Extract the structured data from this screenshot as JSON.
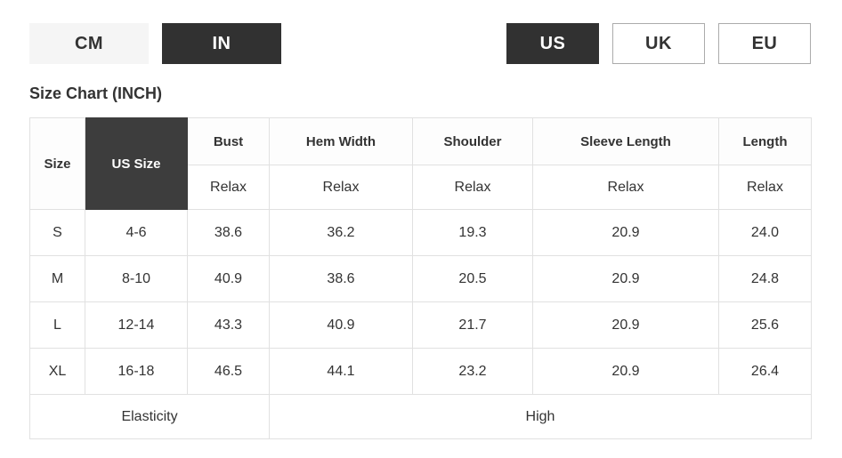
{
  "unit_toggle": {
    "options": [
      {
        "label": "CM",
        "selected": false
      },
      {
        "label": "IN",
        "selected": true
      }
    ]
  },
  "region_toggle": {
    "options": [
      {
        "label": "US",
        "selected": true
      },
      {
        "label": "UK",
        "selected": false
      },
      {
        "label": "EU",
        "selected": false
      }
    ]
  },
  "title": "Size Chart (INCH)",
  "table": {
    "columns": [
      {
        "label": "Size"
      },
      {
        "label": "US Size"
      },
      {
        "label": "Bust"
      },
      {
        "label": "Hem Width"
      },
      {
        "label": "Shoulder"
      },
      {
        "label": "Sleeve Length"
      },
      {
        "label": "Length"
      }
    ],
    "fit_label": "Relax",
    "rows": [
      {
        "size": "S",
        "us_size": "4-6",
        "bust": "38.6",
        "hem_width": "36.2",
        "shoulder": "19.3",
        "sleeve_length": "20.9",
        "length": "24.0"
      },
      {
        "size": "M",
        "us_size": "8-10",
        "bust": "40.9",
        "hem_width": "38.6",
        "shoulder": "20.5",
        "sleeve_length": "20.9",
        "length": "24.8"
      },
      {
        "size": "L",
        "us_size": "12-14",
        "bust": "43.3",
        "hem_width": "40.9",
        "shoulder": "21.7",
        "sleeve_length": "20.9",
        "length": "25.6"
      },
      {
        "size": "XL",
        "us_size": "16-18",
        "bust": "46.5",
        "hem_width": "44.1",
        "shoulder": "23.2",
        "sleeve_length": "20.9",
        "length": "26.4"
      }
    ],
    "footer": {
      "label": "Elasticity",
      "value": "High"
    }
  },
  "colors": {
    "dark_selected_bg": "#313131",
    "dark_header_cell_bg": "#3d3d3d",
    "light_button_bg": "#f5f5f5",
    "table_border": "#e1e1e1",
    "text": "#333333",
    "region_button_border": "#ababab"
  }
}
